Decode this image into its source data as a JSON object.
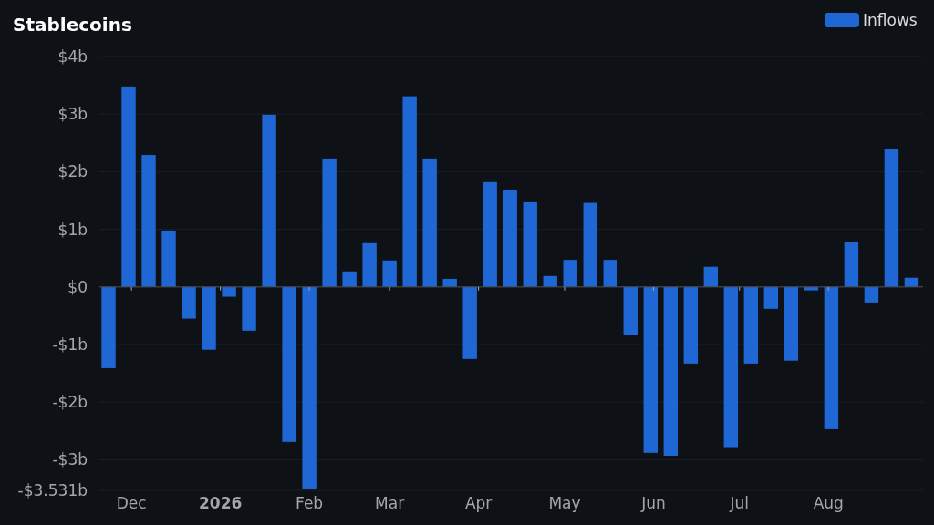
{
  "chart_data": {
    "type": "bar",
    "title": "Stablecoins",
    "x": [
      "2025-11-23",
      "2025-11-30",
      "2025-12-07",
      "2025-12-14",
      "2025-12-21",
      "2025-12-28",
      "2026-01-04",
      "2026-01-11",
      "2026-01-18",
      "2026-01-25",
      "2026-02-01",
      "2026-02-08",
      "2026-02-15",
      "2026-02-22",
      "2026-03-01",
      "2026-03-08",
      "2026-03-15",
      "2026-03-22",
      "2026-03-29",
      "2026-04-05",
      "2026-04-12",
      "2026-04-19",
      "2026-04-26",
      "2026-05-03",
      "2026-05-10",
      "2026-05-17",
      "2026-05-24",
      "2026-05-31",
      "2026-06-07",
      "2026-06-14",
      "2026-06-21",
      "2026-06-28",
      "2026-07-05",
      "2026-07-12",
      "2026-07-19",
      "2026-07-26",
      "2026-08-02",
      "2026-08-09",
      "2026-08-16",
      "2026-08-23",
      "2026-08-30"
    ],
    "series": [
      {
        "name": "Inflows",
        "color": "#1f67d4",
        "values": [
          -1.41,
          3.48,
          2.29,
          0.98,
          -0.55,
          -1.09,
          -0.17,
          -0.76,
          2.99,
          -2.69,
          -3.51,
          2.23,
          0.27,
          0.76,
          0.46,
          3.31,
          2.23,
          0.14,
          -1.25,
          1.82,
          1.68,
          1.47,
          0.19,
          0.47,
          1.46,
          0.47,
          -0.84,
          -2.88,
          -2.93,
          -1.33,
          0.35,
          -2.78,
          -1.33,
          -0.38,
          -1.28,
          -0.06,
          -2.47,
          0.78,
          -0.27,
          2.39,
          0.16
        ]
      }
    ],
    "xlim": [
      "2025-11-19T12:00",
      "2026-09-03"
    ],
    "xticks": [
      {
        "value": "2025-12-01",
        "label": "Dec"
      },
      {
        "value": "2026-01-01",
        "label": "2026"
      },
      {
        "value": "2026-02-01",
        "label": "Feb"
      },
      {
        "value": "2026-03-01",
        "label": "Mar"
      },
      {
        "value": "2026-04-01",
        "label": "Apr"
      },
      {
        "value": "2026-05-01",
        "label": "May"
      },
      {
        "value": "2026-06-01",
        "label": "Jun"
      },
      {
        "value": "2026-07-01",
        "label": "Jul"
      },
      {
        "value": "2026-08-01",
        "label": "Aug"
      }
    ],
    "ylim": [
      -3.531,
      4
    ],
    "yticks": [
      {
        "value": -3.531,
        "label": "-$3.531b"
      },
      {
        "value": -3,
        "label": "-$3b"
      },
      {
        "value": -2,
        "label": "-$2b"
      },
      {
        "value": -1,
        "label": "-$1b"
      },
      {
        "value": 0,
        "label": "$0"
      },
      {
        "value": 1,
        "label": "$1b"
      },
      {
        "value": 2,
        "label": "$2b"
      },
      {
        "value": 3,
        "label": "$3b"
      },
      {
        "value": 4,
        "label": "$4b"
      }
    ],
    "grid": "y",
    "legend": "top right"
  }
}
